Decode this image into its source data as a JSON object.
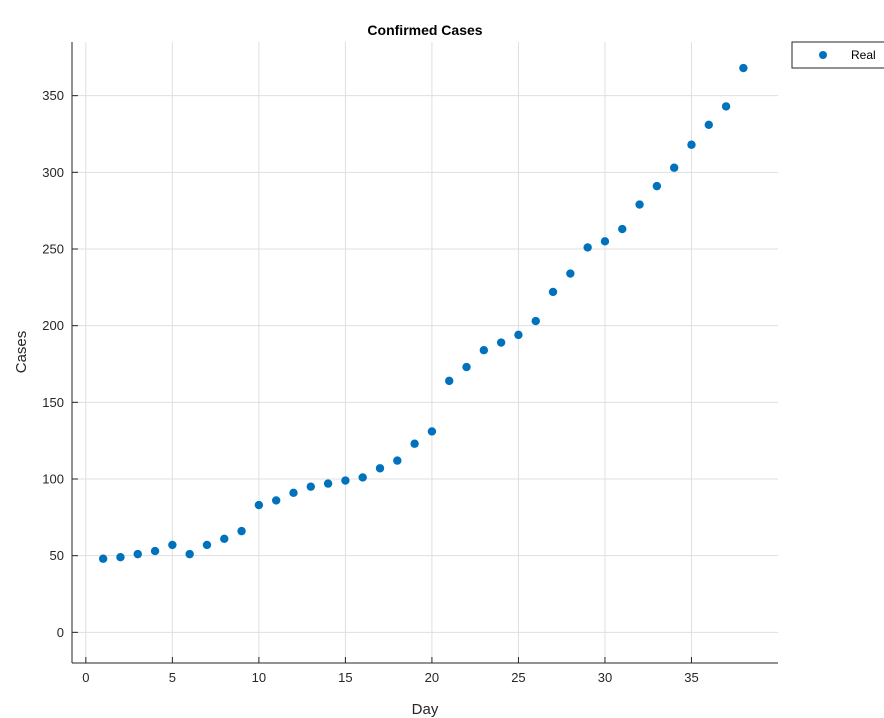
{
  "chart_data": {
    "type": "scatter",
    "title": "Confirmed Cases",
    "xlabel": "Day",
    "ylabel": "Cases",
    "xlim": [
      -0.8,
      40
    ],
    "ylim": [
      -20,
      385
    ],
    "xticks": [
      0,
      5,
      10,
      15,
      20,
      25,
      30,
      35
    ],
    "yticks": [
      0,
      50,
      100,
      150,
      200,
      250,
      300,
      350
    ],
    "grid": true,
    "legend_position": "top-right, outside plot",
    "series": [
      {
        "name": "Real",
        "color": "#0072BD",
        "marker": "circle",
        "x": [
          1,
          2,
          3,
          4,
          5,
          6,
          7,
          8,
          9,
          10,
          11,
          12,
          13,
          14,
          15,
          16,
          17,
          18,
          19,
          20,
          21,
          22,
          23,
          24,
          25,
          26,
          27,
          28,
          29,
          30,
          31,
          32,
          33,
          34,
          35,
          36,
          37,
          38
        ],
        "y": [
          48,
          49,
          51,
          53,
          57,
          51,
          57,
          61,
          66,
          83,
          86,
          91,
          95,
          97,
          99,
          101,
          107,
          112,
          123,
          131,
          164,
          173,
          184,
          189,
          194,
          203,
          222,
          234,
          251,
          255,
          263,
          279,
          291,
          303,
          318,
          331,
          343,
          368
        ]
      }
    ]
  }
}
